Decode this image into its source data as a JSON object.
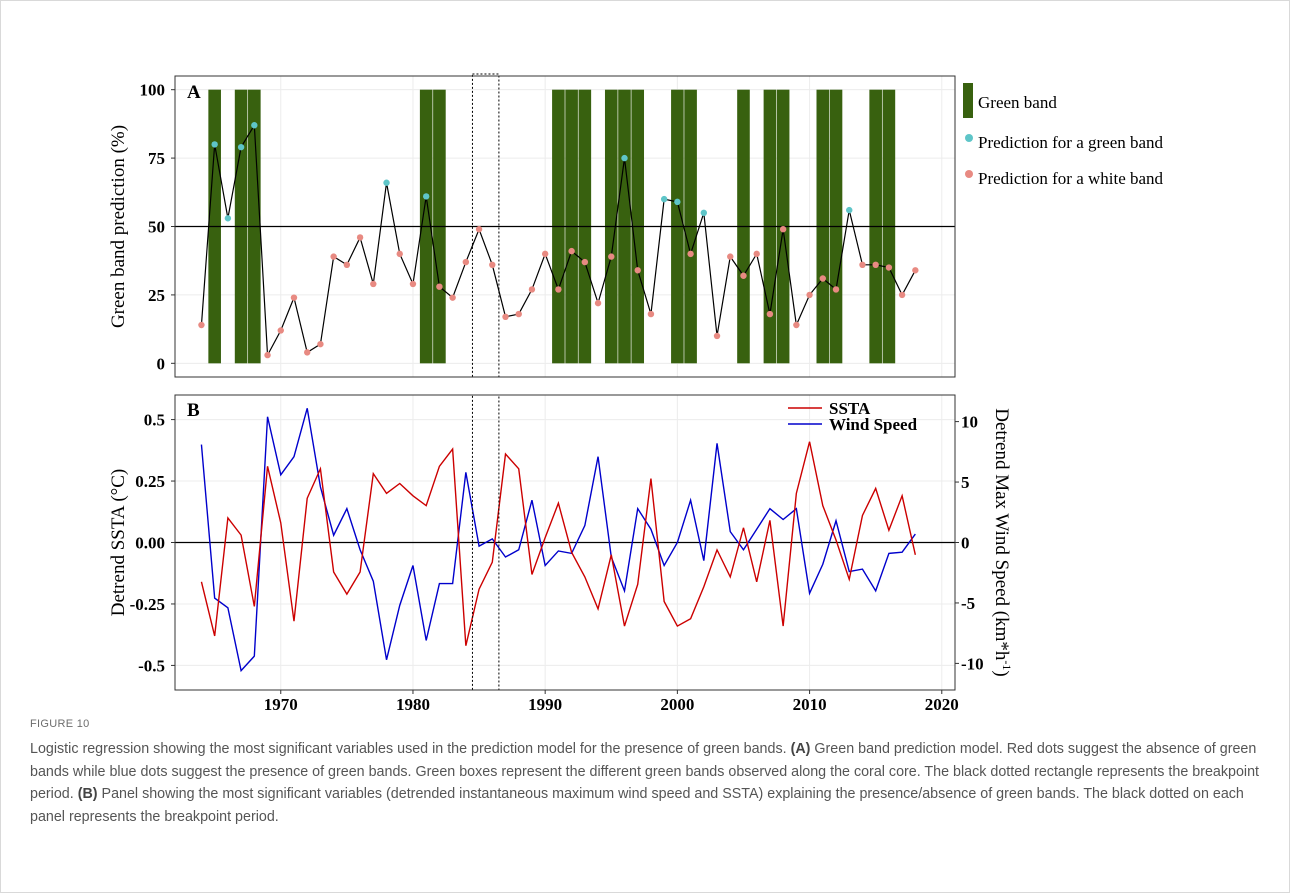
{
  "figure_label": "FIGURE 10",
  "caption": {
    "lead": "Logistic regression showing the most significant variables used in the prediction model for the presence of green bands.",
    "a_tag": "(A)",
    "a_text": "Green band prediction model. Red dots suggest the absence of green bands while blue dots suggest the presence of green bands. Green boxes represent the different green bands observed along the coral core. The black dotted rectangle represents the breakpoint period.",
    "b_tag": "(B)",
    "b_text": "Panel showing the most significant variables (detrended instantaneous maximum wind speed and SSTA) explaining the presence/absence of green bands. The black dotted on each panel represents the breakpoint period."
  },
  "colors": {
    "green_band": "#38610f",
    "green_dot": "#5ec5c8",
    "white_dot": "#e88a82",
    "sst": "#cc0000",
    "wind": "#0000cc"
  },
  "chart_data": [
    {
      "panel": "A",
      "type": "bar",
      "ylabel": "Green band prediction (%)",
      "ylim": [
        -5,
        105
      ],
      "yticks": [
        0,
        25,
        50,
        75,
        100
      ],
      "threshold": 50,
      "breakpoint_years": [
        1984.5,
        1986.5
      ],
      "green_band_years": [
        1965,
        1967,
        1968,
        1981,
        1982,
        1991,
        1992,
        1993,
        1995,
        1996,
        1997,
        2000,
        2001,
        2005,
        2007,
        2008,
        2011,
        2012,
        2015,
        2016
      ],
      "legend": [
        {
          "label": "Green band",
          "kind": "bar"
        },
        {
          "label": "Prediction for a green band",
          "kind": "green_dot"
        },
        {
          "label": "Prediction for a white band",
          "kind": "white_dot"
        }
      ],
      "x": [
        1964,
        1965,
        1966,
        1967,
        1968,
        1969,
        1970,
        1971,
        1972,
        1973,
        1974,
        1975,
        1976,
        1977,
        1978,
        1979,
        1980,
        1981,
        1982,
        1983,
        1984,
        1985,
        1986,
        1987,
        1988,
        1989,
        1990,
        1991,
        1992,
        1993,
        1994,
        1995,
        1996,
        1997,
        1998,
        1999,
        2000,
        2001,
        2002,
        2003,
        2004,
        2005,
        2006,
        2007,
        2008,
        2009,
        2010,
        2011,
        2012,
        2013,
        2014,
        2015,
        2016,
        2017,
        2018
      ],
      "prediction": [
        14,
        80,
        53,
        79,
        87,
        3,
        12,
        24,
        4,
        7,
        39,
        36,
        46,
        29,
        66,
        40,
        29,
        61,
        28,
        24,
        37,
        49,
        36,
        17,
        18,
        27,
        40,
        27,
        41,
        37,
        22,
        39,
        75,
        34,
        18,
        60,
        59,
        40,
        55,
        10,
        39,
        32,
        40,
        18,
        49,
        14,
        25,
        31,
        27,
        56,
        36,
        36,
        35,
        25,
        34
      ],
      "green_prediction_years": [
        1965,
        1966,
        1967,
        1968,
        1978,
        1981,
        1996,
        1999,
        2000,
        2002,
        2013
      ]
    },
    {
      "panel": "B",
      "type": "line",
      "xlabel": "",
      "ylabel_left": "Detrend SSTA (°C)",
      "ylabel_right": "Detrend Max Wind Speed (km*h-1)",
      "ylim_left": [
        -0.6,
        0.6
      ],
      "ylim_right": [
        -12.2,
        12.2
      ],
      "xlim": [
        1962,
        2021
      ],
      "xticks": [
        1970,
        1980,
        1990,
        2000,
        2010,
        2020
      ],
      "yticks_left": [
        -0.5,
        -0.25,
        0.0,
        0.25,
        0.5
      ],
      "ytick_labels_left": [
        "-0.5",
        "-0.25",
        "0.00",
        "0.25",
        "0.5"
      ],
      "yticks_right": [
        -10,
        -5,
        0,
        5,
        10
      ],
      "breakpoint_years": [
        1984.5,
        1986.5
      ],
      "legend_position": "top-right",
      "series": [
        {
          "name": "SSTA",
          "axis": "left",
          "x": [
            1964,
            1965,
            1966,
            1967,
            1968,
            1969,
            1970,
            1971,
            1972,
            1973,
            1974,
            1975,
            1976,
            1977,
            1978,
            1979,
            1980,
            1981,
            1982,
            1983,
            1984,
            1985,
            1986,
            1987,
            1988,
            1989,
            1990,
            1991,
            1992,
            1993,
            1994,
            1995,
            1996,
            1997,
            1998,
            1999,
            2000,
            2001,
            2002,
            2003,
            2004,
            2005,
            2006,
            2007,
            2008,
            2009,
            2010,
            2011,
            2012,
            2013,
            2014,
            2015,
            2016,
            2017,
            2018
          ],
          "values": [
            -0.16,
            -0.38,
            0.1,
            0.03,
            -0.26,
            0.31,
            0.08,
            -0.32,
            0.18,
            0.3,
            -0.12,
            -0.21,
            -0.12,
            0.28,
            0.2,
            0.24,
            0.19,
            0.15,
            0.31,
            0.38,
            -0.42,
            -0.19,
            -0.08,
            0.36,
            0.3,
            -0.13,
            0.02,
            0.16,
            -0.04,
            -0.14,
            -0.27,
            -0.05,
            -0.34,
            -0.17,
            0.26,
            -0.24,
            -0.34,
            -0.31,
            -0.18,
            -0.03,
            -0.14,
            0.06,
            -0.16,
            0.09,
            -0.34,
            0.2,
            0.41,
            0.15,
            0.01,
            -0.15,
            0.11,
            0.22,
            0.05,
            0.19,
            -0.05
          ]
        },
        {
          "name": "Wind Speed",
          "axis": "right",
          "x": [
            1964,
            1965,
            1966,
            1967,
            1968,
            1969,
            1970,
            1971,
            1972,
            1973,
            1974,
            1975,
            1976,
            1977,
            1978,
            1979,
            1980,
            1981,
            1982,
            1983,
            1984,
            1985,
            1986,
            1987,
            1988,
            1989,
            1990,
            1991,
            1992,
            1993,
            1994,
            1995,
            1996,
            1997,
            1998,
            1999,
            2000,
            2001,
            2002,
            2003,
            2004,
            2005,
            2006,
            2007,
            2008,
            2009,
            2010,
            2011,
            2012,
            2013,
            2014,
            2015,
            2016,
            2017,
            2018
          ],
          "values": [
            8.1,
            -4.6,
            -5.4,
            -10.6,
            -9.4,
            10.4,
            5.6,
            7.1,
            11.1,
            4.6,
            0.6,
            2.8,
            -0.6,
            -3.2,
            -9.7,
            -5.2,
            -1.9,
            -8.1,
            -3.4,
            -3.4,
            5.8,
            -0.3,
            0.3,
            -1.2,
            -0.6,
            3.5,
            -1.9,
            -0.7,
            -0.9,
            1.4,
            7.1,
            -1.2,
            -4.0,
            2.8,
            1.1,
            -1.9,
            0.0,
            3.5,
            -1.5,
            8.2,
            0.9,
            -0.6,
            1.1,
            2.8,
            1.9,
            2.8,
            -4.2,
            -1.8,
            1.8,
            -2.4,
            -2.2,
            -4.0,
            -0.9,
            -0.8,
            0.7
          ]
        }
      ]
    }
  ]
}
